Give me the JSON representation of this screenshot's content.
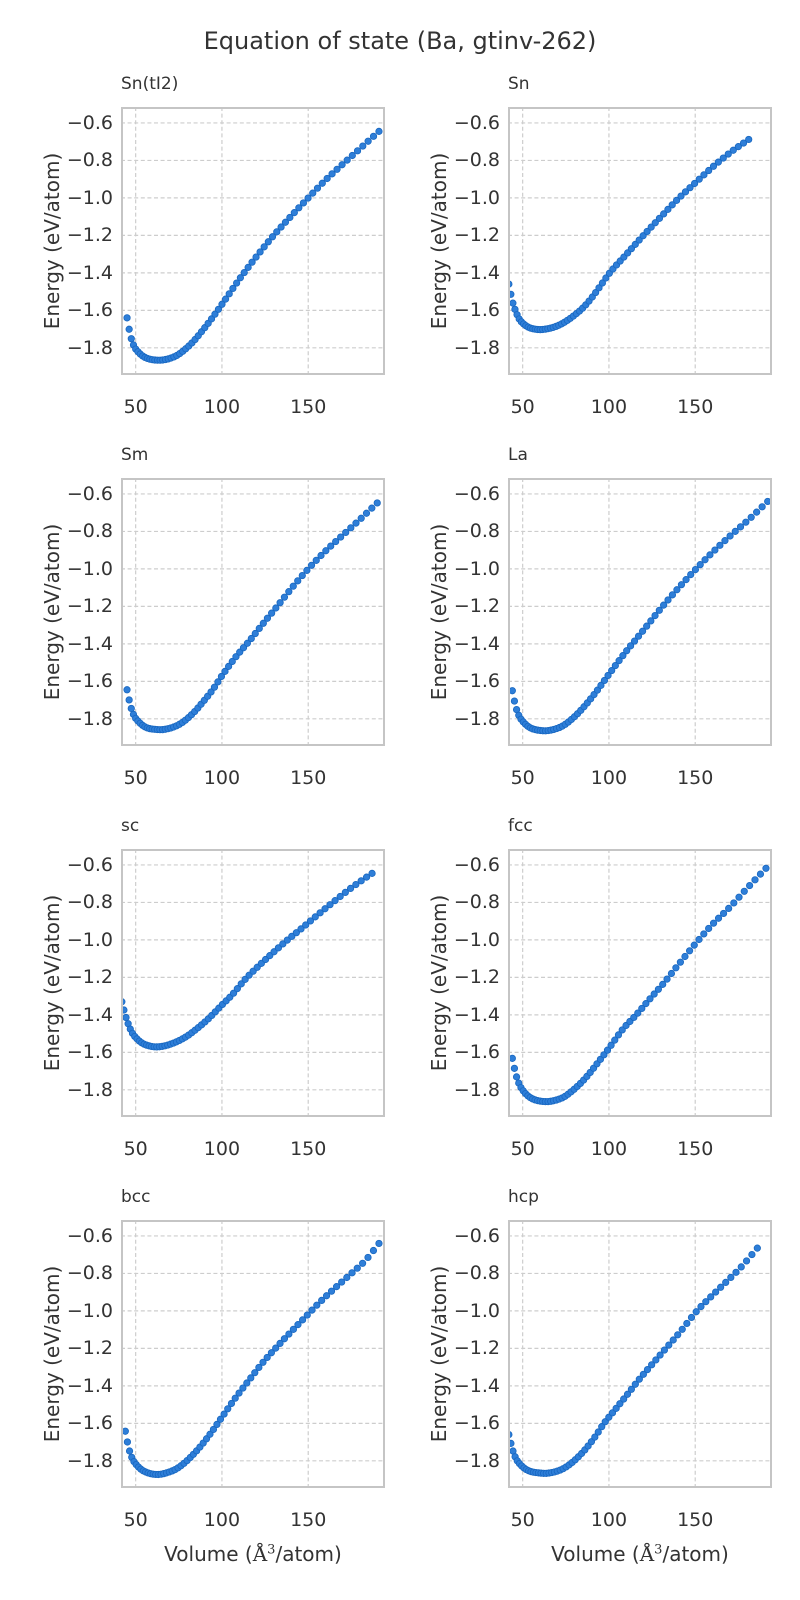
{
  "header": {
    "title": "Equation of state (Ba, gtinv-262)"
  },
  "chart_data": {
    "type": "scatter",
    "title": "Equation of state (Ba, gtinv-262)",
    "layout": {
      "rows": 4,
      "cols": 2,
      "grid": true,
      "legend": "none",
      "point_color": "#2e7ed8",
      "point_edge_color": "#1867c0",
      "grid_color": "#cdcdcd",
      "frame_color": "#c5c5c5",
      "text_color": "#333333"
    },
    "axes": {
      "xlabel_prefix": "Volume (",
      "xlabel_math": "Å",
      "xlabel_sup": "3",
      "xlabel_suffix": "/atom)",
      "ylabel": "Energy (eV/atom)",
      "xticks": [
        50,
        100,
        150
      ],
      "xtick_labels": [
        "50",
        "100",
        "150"
      ],
      "yticks": [
        -0.6,
        -0.8,
        -1.0,
        -1.2,
        -1.4,
        -1.6,
        -1.8
      ],
      "ytick_labels": [
        "−0.6",
        "−0.8",
        "−1.0",
        "−1.2",
        "−1.4",
        "−1.6",
        "−1.8"
      ],
      "xlim": [
        41.5,
        194.5
      ],
      "ylim": [
        -1.945,
        -0.515
      ]
    },
    "n_points_per_curve": 70,
    "subplots": [
      {
        "name": "Sn(tI2)",
        "anchors": [
          [
            45,
            -1.64
          ],
          [
            47,
            -1.735
          ],
          [
            49,
            -1.79
          ],
          [
            52,
            -1.827
          ],
          [
            55,
            -1.849
          ],
          [
            58,
            -1.86
          ],
          [
            61,
            -1.865
          ],
          [
            64,
            -1.866
          ],
          [
            67,
            -1.863
          ],
          [
            70,
            -1.856
          ],
          [
            74,
            -1.84
          ],
          [
            78,
            -1.813
          ],
          [
            83,
            -1.77
          ],
          [
            88,
            -1.716
          ],
          [
            94,
            -1.645
          ],
          [
            100,
            -1.568
          ],
          [
            110,
            -1.435
          ],
          [
            120,
            -1.313
          ],
          [
            130,
            -1.2
          ],
          [
            140,
            -1.098
          ],
          [
            150,
            -1.0
          ],
          [
            160,
            -0.905
          ],
          [
            170,
            -0.82
          ],
          [
            180,
            -0.737
          ],
          [
            191,
            -0.645
          ]
        ]
      },
      {
        "name": "Sn",
        "anchors": [
          [
            42,
            -1.46
          ],
          [
            44,
            -1.55
          ],
          [
            46,
            -1.606
          ],
          [
            48,
            -1.646
          ],
          [
            51,
            -1.676
          ],
          [
            54,
            -1.693
          ],
          [
            57,
            -1.7
          ],
          [
            60,
            -1.703
          ],
          [
            64,
            -1.699
          ],
          [
            68,
            -1.69
          ],
          [
            72,
            -1.675
          ],
          [
            76,
            -1.653
          ],
          [
            80,
            -1.626
          ],
          [
            85,
            -1.586
          ],
          [
            90,
            -1.533
          ],
          [
            95,
            -1.47
          ],
          [
            100,
            -1.405
          ],
          [
            110,
            -1.302
          ],
          [
            120,
            -1.2
          ],
          [
            130,
            -1.102
          ],
          [
            140,
            -1.006
          ],
          [
            150,
            -0.92
          ],
          [
            160,
            -0.836
          ],
          [
            170,
            -0.76
          ],
          [
            181,
            -0.688
          ]
        ]
      },
      {
        "name": "Sm",
        "anchors": [
          [
            45,
            -1.645
          ],
          [
            47,
            -1.73
          ],
          [
            49,
            -1.782
          ],
          [
            52,
            -1.818
          ],
          [
            55,
            -1.841
          ],
          [
            58,
            -1.852
          ],
          [
            61,
            -1.856
          ],
          [
            65,
            -1.858
          ],
          [
            68,
            -1.854
          ],
          [
            71,
            -1.847
          ],
          [
            75,
            -1.831
          ],
          [
            79,
            -1.806
          ],
          [
            84,
            -1.763
          ],
          [
            89,
            -1.71
          ],
          [
            95,
            -1.64
          ],
          [
            100,
            -1.57
          ],
          [
            108,
            -1.47
          ],
          [
            116,
            -1.383
          ],
          [
            124,
            -1.29
          ],
          [
            132,
            -1.2
          ],
          [
            141,
            -1.096
          ],
          [
            150,
            -1.0
          ],
          [
            160,
            -0.905
          ],
          [
            170,
            -0.82
          ],
          [
            180,
            -0.736
          ],
          [
            190,
            -0.648
          ]
        ]
      },
      {
        "name": "La",
        "anchors": [
          [
            44,
            -1.65
          ],
          [
            46,
            -1.736
          ],
          [
            48,
            -1.786
          ],
          [
            51,
            -1.823
          ],
          [
            54,
            -1.846
          ],
          [
            57,
            -1.857
          ],
          [
            60,
            -1.862
          ],
          [
            63,
            -1.864
          ],
          [
            66,
            -1.861
          ],
          [
            69,
            -1.854
          ],
          [
            73,
            -1.839
          ],
          [
            77,
            -1.813
          ],
          [
            82,
            -1.771
          ],
          [
            87,
            -1.72
          ],
          [
            93,
            -1.651
          ],
          [
            100,
            -1.562
          ],
          [
            110,
            -1.44
          ],
          [
            120,
            -1.327
          ],
          [
            130,
            -1.212
          ],
          [
            140,
            -1.105
          ],
          [
            150,
            -1.005
          ],
          [
            160,
            -0.912
          ],
          [
            170,
            -0.826
          ],
          [
            181,
            -0.737
          ],
          [
            192,
            -0.64
          ]
        ]
      },
      {
        "name": "sc",
        "anchors": [
          [
            42,
            -1.33
          ],
          [
            44,
            -1.402
          ],
          [
            46,
            -1.456
          ],
          [
            48,
            -1.496
          ],
          [
            51,
            -1.53
          ],
          [
            54,
            -1.552
          ],
          [
            58,
            -1.566
          ],
          [
            62,
            -1.571
          ],
          [
            66,
            -1.567
          ],
          [
            70,
            -1.557
          ],
          [
            75,
            -1.538
          ],
          [
            80,
            -1.512
          ],
          [
            86,
            -1.47
          ],
          [
            92,
            -1.422
          ],
          [
            100,
            -1.347
          ],
          [
            106,
            -1.292
          ],
          [
            113,
            -1.215
          ],
          [
            120,
            -1.15
          ],
          [
            130,
            -1.065
          ],
          [
            138,
            -1.0
          ],
          [
            146,
            -0.94
          ],
          [
            155,
            -0.87
          ],
          [
            164,
            -0.802
          ],
          [
            175,
            -0.722
          ],
          [
            187,
            -0.645
          ]
        ]
      },
      {
        "name": "fcc",
        "anchors": [
          [
            44,
            -1.632
          ],
          [
            46,
            -1.716
          ],
          [
            48,
            -1.77
          ],
          [
            51,
            -1.813
          ],
          [
            54,
            -1.839
          ],
          [
            57,
            -1.853
          ],
          [
            60,
            -1.86
          ],
          [
            64,
            -1.863
          ],
          [
            67,
            -1.86
          ],
          [
            70,
            -1.853
          ],
          [
            74,
            -1.838
          ],
          [
            78,
            -1.811
          ],
          [
            83,
            -1.77
          ],
          [
            88,
            -1.72
          ],
          [
            94,
            -1.65
          ],
          [
            100,
            -1.578
          ],
          [
            108,
            -1.477
          ],
          [
            116,
            -1.398
          ],
          [
            124,
            -1.312
          ],
          [
            132,
            -1.228
          ],
          [
            140,
            -1.135
          ],
          [
            152,
            -1.0
          ],
          [
            160,
            -0.917
          ],
          [
            170,
            -0.826
          ],
          [
            180,
            -0.725
          ],
          [
            191,
            -0.618
          ]
        ]
      },
      {
        "name": "bcc",
        "anchors": [
          [
            44,
            -1.642
          ],
          [
            46,
            -1.732
          ],
          [
            48,
            -1.787
          ],
          [
            51,
            -1.827
          ],
          [
            54,
            -1.851
          ],
          [
            57,
            -1.864
          ],
          [
            60,
            -1.871
          ],
          [
            63,
            -1.873
          ],
          [
            66,
            -1.869
          ],
          [
            69,
            -1.861
          ],
          [
            73,
            -1.846
          ],
          [
            77,
            -1.821
          ],
          [
            82,
            -1.779
          ],
          [
            87,
            -1.729
          ],
          [
            93,
            -1.659
          ],
          [
            100,
            -1.567
          ],
          [
            108,
            -1.462
          ],
          [
            116,
            -1.366
          ],
          [
            124,
            -1.272
          ],
          [
            132,
            -1.19
          ],
          [
            140,
            -1.112
          ],
          [
            148,
            -1.036
          ],
          [
            157,
            -0.951
          ],
          [
            166,
            -0.874
          ],
          [
            175,
            -0.8
          ],
          [
            183,
            -0.732
          ],
          [
            191,
            -0.64
          ]
        ]
      },
      {
        "name": "hcp",
        "anchors": [
          [
            42,
            -1.66
          ],
          [
            44,
            -1.736
          ],
          [
            46,
            -1.786
          ],
          [
            49,
            -1.823
          ],
          [
            52,
            -1.846
          ],
          [
            55,
            -1.858
          ],
          [
            59,
            -1.864
          ],
          [
            63,
            -1.867
          ],
          [
            66,
            -1.864
          ],
          [
            69,
            -1.858
          ],
          [
            73,
            -1.844
          ],
          [
            77,
            -1.821
          ],
          [
            82,
            -1.781
          ],
          [
            87,
            -1.731
          ],
          [
            92,
            -1.671
          ],
          [
            97,
            -1.602
          ],
          [
            104,
            -1.522
          ],
          [
            111,
            -1.442
          ],
          [
            118,
            -1.36
          ],
          [
            125,
            -1.285
          ],
          [
            133,
            -1.2
          ],
          [
            141,
            -1.115
          ],
          [
            151,
            -1.0
          ],
          [
            160,
            -0.916
          ],
          [
            169,
            -0.836
          ],
          [
            177,
            -0.762
          ],
          [
            186,
            -0.665
          ]
        ]
      }
    ]
  }
}
